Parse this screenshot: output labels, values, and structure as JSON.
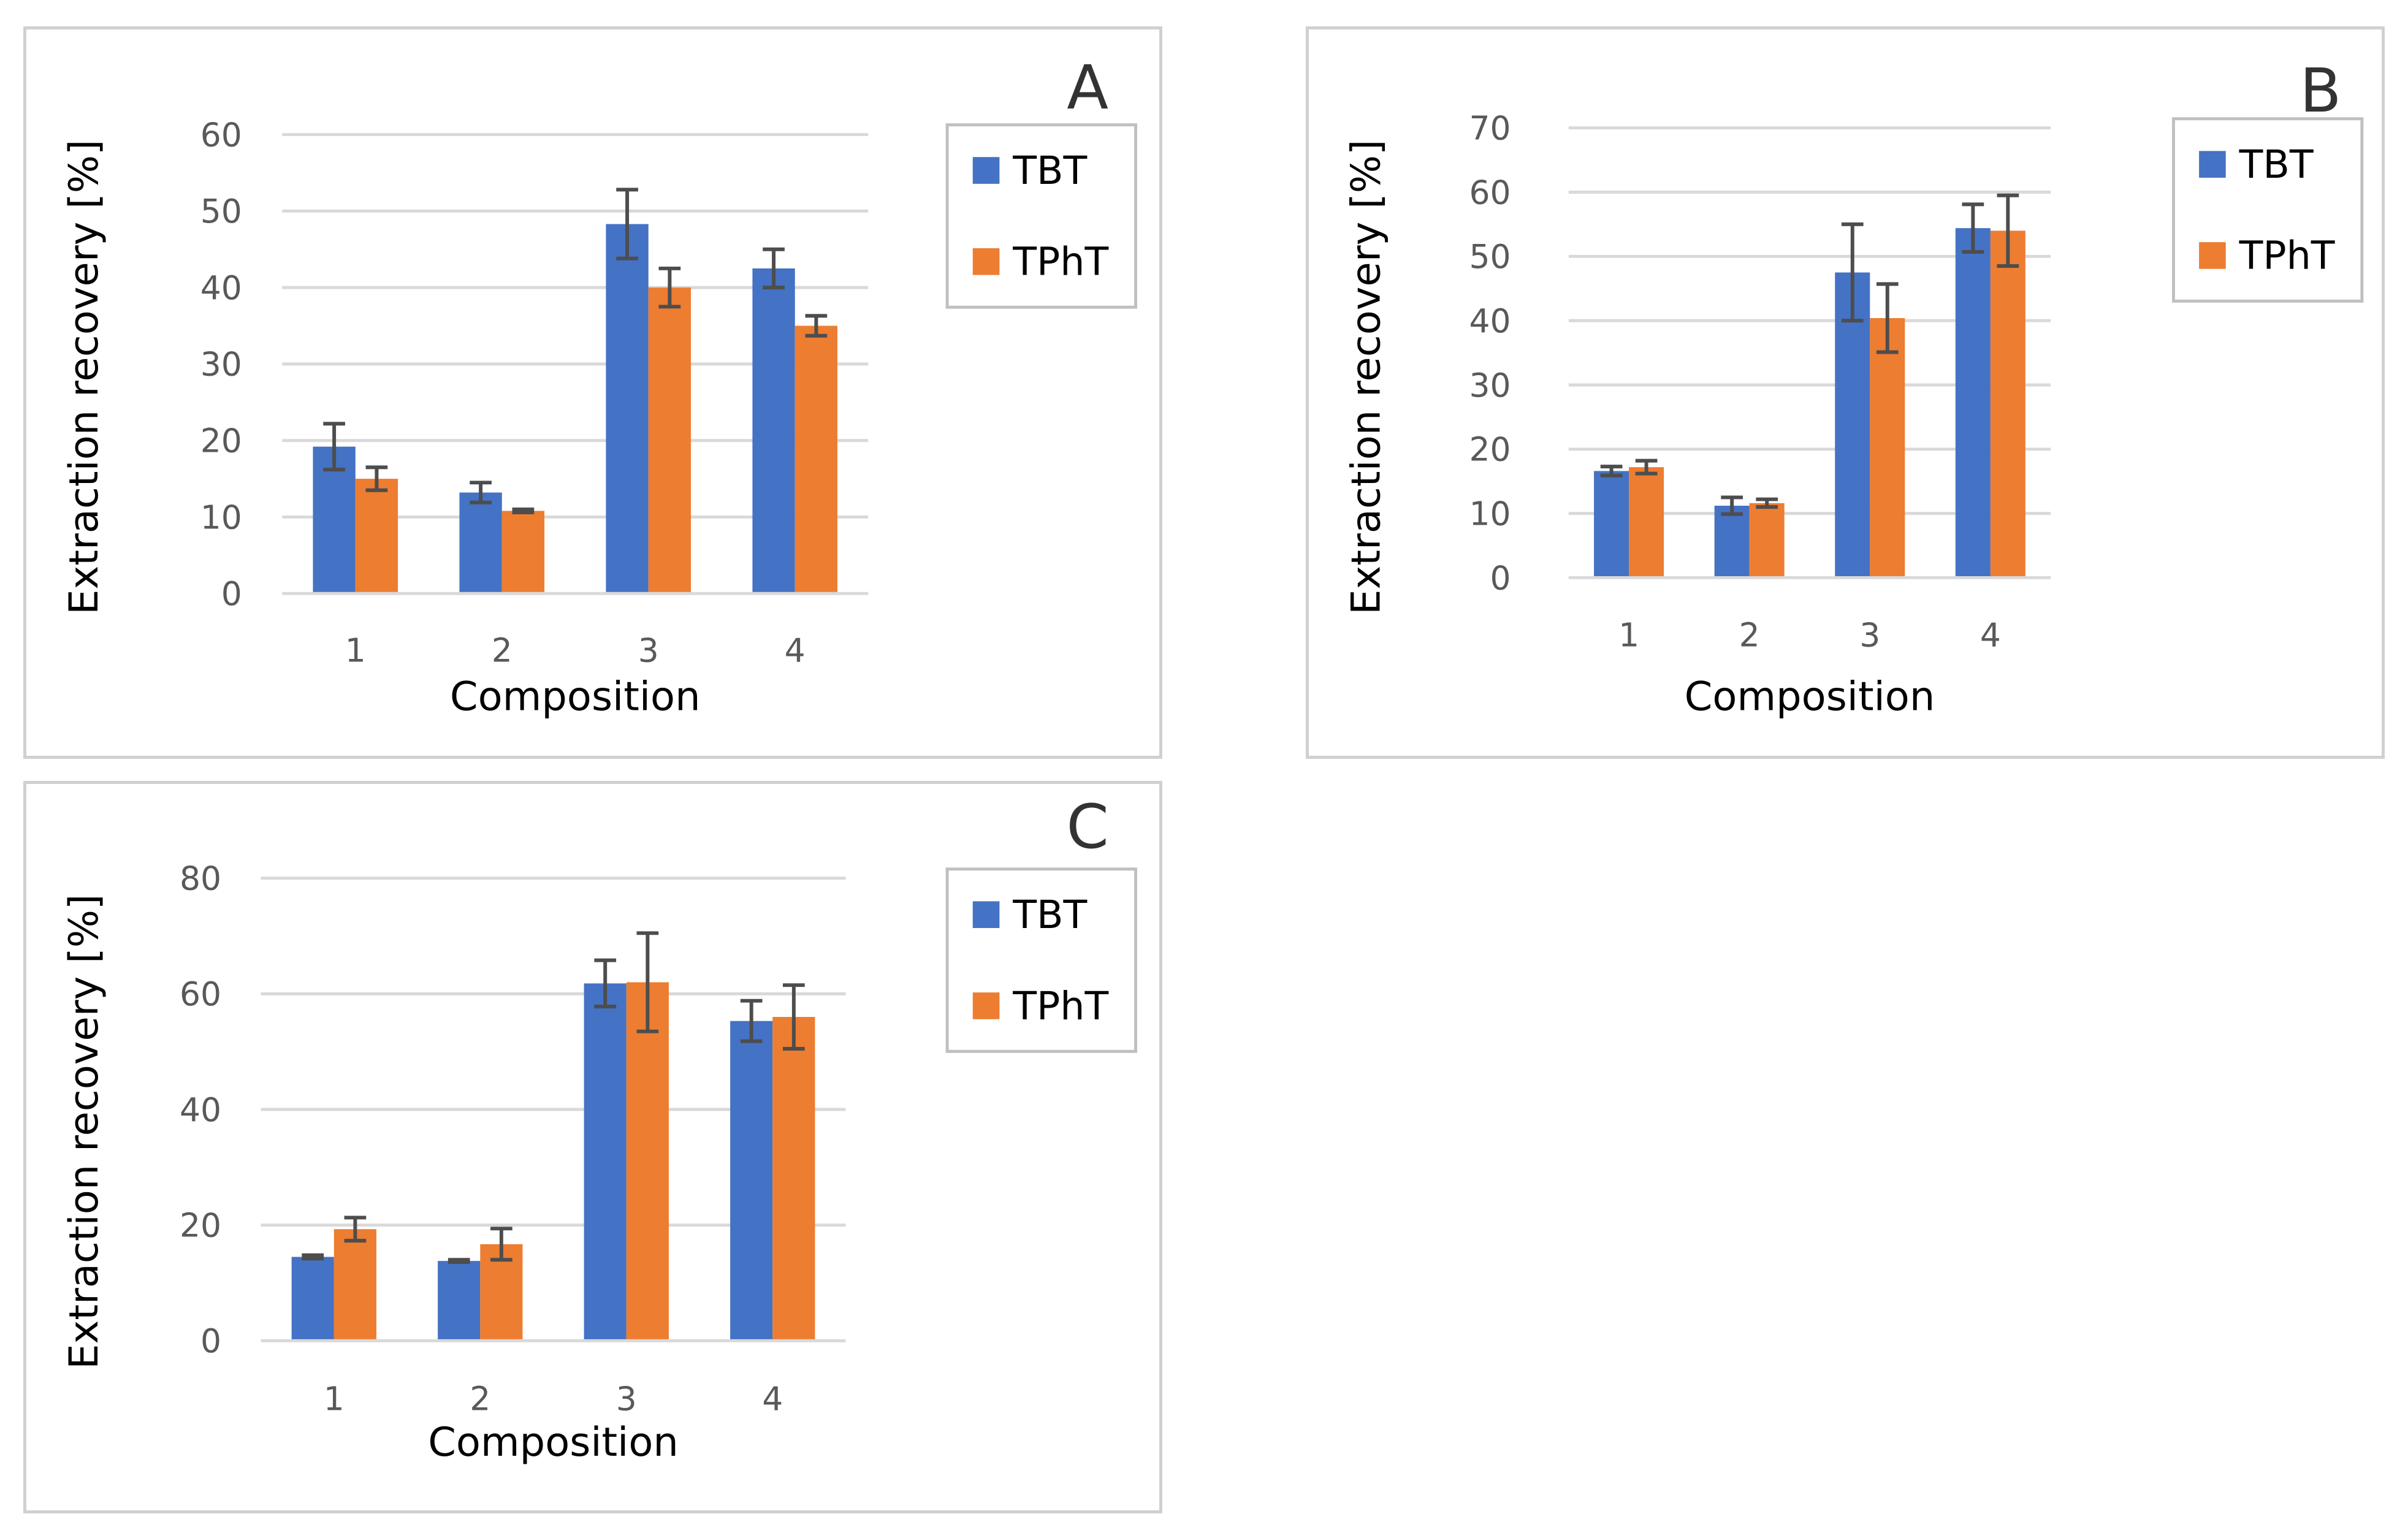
{
  "chart_data": [
    {
      "type": "bar",
      "title": "A",
      "categories": [
        "1",
        "2",
        "3",
        "4"
      ],
      "series": [
        {
          "name": "TBT",
          "color": "#4472C4",
          "values": [
            19.2,
            13.2,
            48.3,
            42.5
          ],
          "errors": [
            3.0,
            1.3,
            4.5,
            2.5
          ]
        },
        {
          "name": "TPhT",
          "color": "#ED7D31",
          "values": [
            15.0,
            10.8,
            40.0,
            35.0
          ],
          "errors": [
            1.5,
            0.2,
            2.5,
            1.3
          ]
        }
      ],
      "xlabel": "Composition",
      "ylabel": "Extraction recovery [%]",
      "ylim": [
        0,
        60
      ],
      "yticks": [
        "0",
        "10",
        "20",
        "30",
        "40",
        "50",
        "60"
      ],
      "grid": true,
      "legend": "right"
    },
    {
      "type": "bar",
      "title": "B",
      "categories": [
        "1",
        "2",
        "3",
        "4"
      ],
      "series": [
        {
          "name": "TBT",
          "color": "#4472C4",
          "values": [
            16.6,
            11.2,
            47.5,
            54.4
          ],
          "errors": [
            0.7,
            1.3,
            7.5,
            3.7
          ]
        },
        {
          "name": "TPhT",
          "color": "#ED7D31",
          "values": [
            17.2,
            11.6,
            40.4,
            54.0
          ],
          "errors": [
            1.0,
            0.6,
            5.3,
            5.5
          ]
        }
      ],
      "xlabel": "Composition",
      "ylabel": "Extraction recovery [%]",
      "ylim": [
        0,
        70
      ],
      "yticks": [
        "0",
        "10",
        "20",
        "30",
        "40",
        "50",
        "60",
        "70"
      ],
      "grid": true,
      "legend": "right"
    },
    {
      "type": "bar",
      "title": "C",
      "categories": [
        "1",
        "2",
        "3",
        "4"
      ],
      "series": [
        {
          "name": "TBT",
          "color": "#4472C4",
          "values": [
            14.5,
            13.8,
            61.8,
            55.3
          ],
          "errors": [
            0.3,
            0.2,
            4.0,
            3.5
          ]
        },
        {
          "name": "TPhT",
          "color": "#ED7D31",
          "values": [
            19.3,
            16.7,
            62.0,
            56.0
          ],
          "errors": [
            2.0,
            2.7,
            8.5,
            5.5
          ]
        }
      ],
      "xlabel": "Composition",
      "ylabel": "Extraction recovery [%]",
      "ylim": [
        0,
        80
      ],
      "yticks": [
        "0",
        "20",
        "40",
        "60",
        "80"
      ],
      "grid": true,
      "legend": "right"
    }
  ]
}
